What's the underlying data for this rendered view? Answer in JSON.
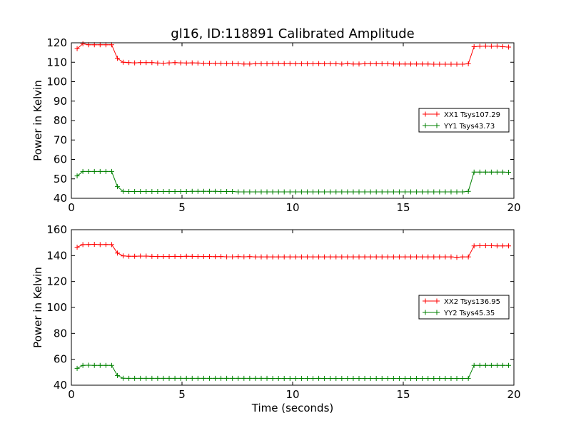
{
  "title": "gl16, ID:118891 Calibrated Amplitude",
  "xlabel": "Time (seconds)",
  "colors": {
    "red": "#ff0000",
    "green": "#008000"
  },
  "chart_data": [
    {
      "type": "line",
      "ylabel": "Power in Kelvin",
      "xlim": [
        0,
        20
      ],
      "ylim": [
        40,
        120
      ],
      "xticks": [
        "0",
        "5",
        "10",
        "15",
        "20"
      ],
      "yticks": [
        "40",
        "50",
        "60",
        "70",
        "80",
        "90",
        "100",
        "110",
        "120"
      ],
      "legend_position": "center-right",
      "series": [
        {
          "name": "XX1 Tsys107.29",
          "color": "#ff0000",
          "x": [
            0.26,
            0.52,
            0.78,
            1.04,
            1.3,
            1.56,
            1.82,
            2.08,
            2.34,
            2.6,
            2.86,
            3.12,
            3.38,
            3.64,
            3.9,
            4.16,
            4.42,
            4.68,
            4.94,
            5.2,
            5.46,
            5.72,
            5.98,
            6.24,
            6.5,
            6.76,
            7.02,
            7.28,
            7.54,
            7.8,
            8.06,
            8.32,
            8.58,
            8.84,
            9.1,
            9.36,
            9.62,
            9.88,
            10.14,
            10.4,
            10.66,
            10.92,
            11.18,
            11.44,
            11.7,
            11.96,
            12.22,
            12.48,
            12.74,
            13.0,
            13.26,
            13.52,
            13.78,
            14.04,
            14.3,
            14.56,
            14.82,
            15.08,
            15.34,
            15.6,
            15.86,
            16.12,
            16.38,
            16.64,
            16.9,
            17.16,
            17.42,
            17.68,
            17.94,
            18.2,
            18.46,
            18.72,
            18.98,
            19.24,
            19.5,
            19.76
          ],
          "y": [
            117,
            119.5,
            119,
            119,
            119,
            119,
            119,
            112,
            110,
            109.8,
            109.7,
            109.8,
            109.8,
            109.8,
            109.6,
            109.5,
            109.7,
            109.8,
            109.7,
            109.6,
            109.7,
            109.6,
            109.4,
            109.5,
            109.4,
            109.4,
            109.3,
            109.4,
            109.2,
            109.1,
            109.1,
            109.2,
            109.2,
            109.2,
            109.3,
            109.3,
            109.3,
            109.3,
            109.2,
            109.2,
            109.2,
            109.2,
            109.3,
            109.2,
            109.2,
            109.2,
            109.1,
            109.3,
            109.1,
            109.1,
            109.2,
            109.2,
            109.2,
            109.2,
            109.2,
            109.1,
            109.1,
            109.1,
            109.1,
            109.1,
            109.1,
            109.1,
            109.0,
            109.0,
            109.0,
            109.0,
            109.0,
            109.0,
            109.2,
            118,
            118.2,
            118.3,
            118.2,
            118.3,
            118.0,
            117.8
          ]
        },
        {
          "name": "YY1 Tsys43.73",
          "color": "#008000",
          "x": [
            0.26,
            0.52,
            0.78,
            1.04,
            1.3,
            1.56,
            1.82,
            2.08,
            2.34,
            2.6,
            2.86,
            3.12,
            3.38,
            3.64,
            3.9,
            4.16,
            4.42,
            4.68,
            4.94,
            5.2,
            5.46,
            5.72,
            5.98,
            6.24,
            6.5,
            6.76,
            7.02,
            7.28,
            7.54,
            7.8,
            8.06,
            8.32,
            8.58,
            8.84,
            9.1,
            9.36,
            9.62,
            9.88,
            10.14,
            10.4,
            10.66,
            10.92,
            11.18,
            11.44,
            11.7,
            11.96,
            12.22,
            12.48,
            12.74,
            13.0,
            13.26,
            13.52,
            13.78,
            14.04,
            14.3,
            14.56,
            14.82,
            15.08,
            15.34,
            15.6,
            15.86,
            16.12,
            16.38,
            16.64,
            16.9,
            17.16,
            17.42,
            17.68,
            17.94,
            18.2,
            18.46,
            18.72,
            18.98,
            19.24,
            19.5,
            19.76
          ],
          "y": [
            51.5,
            53.8,
            53.8,
            53.8,
            53.8,
            53.8,
            53.8,
            46,
            43.6,
            43.5,
            43.5,
            43.5,
            43.5,
            43.5,
            43.5,
            43.5,
            43.5,
            43.5,
            43.5,
            43.5,
            43.6,
            43.6,
            43.6,
            43.6,
            43.6,
            43.5,
            43.5,
            43.5,
            43.3,
            43.3,
            43.3,
            43.3,
            43.3,
            43.3,
            43.3,
            43.3,
            43.3,
            43.3,
            43.3,
            43.3,
            43.3,
            43.3,
            43.3,
            43.3,
            43.3,
            43.3,
            43.3,
            43.3,
            43.3,
            43.3,
            43.3,
            43.3,
            43.3,
            43.3,
            43.3,
            43.3,
            43.3,
            43.3,
            43.3,
            43.3,
            43.3,
            43.3,
            43.3,
            43.3,
            43.3,
            43.3,
            43.3,
            43.3,
            43.6,
            53.5,
            53.5,
            53.5,
            53.5,
            53.5,
            53.5,
            53.4
          ]
        }
      ]
    },
    {
      "type": "line",
      "ylabel": "Power in Kelvin",
      "xlim": [
        0,
        20
      ],
      "ylim": [
        40,
        160
      ],
      "xticks": [
        "0",
        "5",
        "10",
        "15",
        "20"
      ],
      "yticks": [
        "40",
        "60",
        "80",
        "100",
        "120",
        "140",
        "160"
      ],
      "legend_position": "center-right",
      "series": [
        {
          "name": "XX2 Tsys136.95",
          "color": "#ff0000",
          "x": [
            0.26,
            0.52,
            0.78,
            1.04,
            1.3,
            1.56,
            1.82,
            2.08,
            2.34,
            2.6,
            2.86,
            3.12,
            3.38,
            3.64,
            3.9,
            4.16,
            4.42,
            4.68,
            4.94,
            5.2,
            5.46,
            5.72,
            5.98,
            6.24,
            6.5,
            6.76,
            7.02,
            7.28,
            7.54,
            7.8,
            8.06,
            8.32,
            8.58,
            8.84,
            9.1,
            9.36,
            9.62,
            9.88,
            10.14,
            10.4,
            10.66,
            10.92,
            11.18,
            11.44,
            11.7,
            11.96,
            12.22,
            12.48,
            12.74,
            13.0,
            13.26,
            13.52,
            13.78,
            14.04,
            14.3,
            14.56,
            14.82,
            15.08,
            15.34,
            15.6,
            15.86,
            16.12,
            16.38,
            16.64,
            16.9,
            17.16,
            17.42,
            17.68,
            17.94,
            18.2,
            18.46,
            18.72,
            18.98,
            19.24,
            19.5,
            19.76
          ],
          "y": [
            146.5,
            148.5,
            148.6,
            148.7,
            148.5,
            148.6,
            148.5,
            142,
            139.8,
            139.5,
            139.5,
            139.6,
            139.6,
            139.4,
            139.3,
            139.3,
            139.3,
            139.4,
            139.3,
            139.5,
            139.4,
            139.3,
            139.3,
            139.3,
            139.2,
            139.3,
            139.1,
            139.1,
            139.2,
            139.1,
            139.2,
            139.0,
            139.0,
            139.0,
            139.0,
            139.0,
            139.0,
            139.0,
            139.0,
            139.0,
            139.0,
            139.0,
            139.0,
            139.0,
            139.0,
            139.0,
            139.0,
            139.0,
            139.0,
            139.0,
            139.0,
            139.0,
            139.0,
            139.0,
            139.0,
            139.0,
            139.0,
            139.0,
            139.0,
            139.0,
            139.0,
            139.0,
            139.0,
            139.0,
            139.0,
            139.0,
            138.7,
            139.0,
            139.0,
            147.5,
            147.6,
            147.6,
            147.6,
            147.5,
            147.5,
            147.5
          ]
        },
        {
          "name": "YY2 Tsys45.35",
          "color": "#008000",
          "x": [
            0.26,
            0.52,
            0.78,
            1.04,
            1.3,
            1.56,
            1.82,
            2.08,
            2.34,
            2.6,
            2.86,
            3.12,
            3.38,
            3.64,
            3.9,
            4.16,
            4.42,
            4.68,
            4.94,
            5.2,
            5.46,
            5.72,
            5.98,
            6.24,
            6.5,
            6.76,
            7.02,
            7.28,
            7.54,
            7.8,
            8.06,
            8.32,
            8.58,
            8.84,
            9.1,
            9.36,
            9.62,
            9.88,
            10.14,
            10.4,
            10.66,
            10.92,
            11.18,
            11.44,
            11.7,
            11.96,
            12.22,
            12.48,
            12.74,
            13.0,
            13.26,
            13.52,
            13.78,
            14.04,
            14.3,
            14.56,
            14.82,
            15.08,
            15.34,
            15.6,
            15.86,
            16.12,
            16.38,
            16.64,
            16.9,
            17.16,
            17.42,
            17.68,
            17.94,
            18.2,
            18.46,
            18.72,
            18.98,
            19.24,
            19.5,
            19.76
          ],
          "y": [
            53,
            55.3,
            55.4,
            55.3,
            55.3,
            55.3,
            55.3,
            47.5,
            45.4,
            45.3,
            45.3,
            45.3,
            45.3,
            45.3,
            45.3,
            45.3,
            45.3,
            45.3,
            45.3,
            45.3,
            45.3,
            45.3,
            45.3,
            45.3,
            45.3,
            45.3,
            45.3,
            45.3,
            45.3,
            45.3,
            45.3,
            45.3,
            45.3,
            45.3,
            45.2,
            45.2,
            45.2,
            45.2,
            45.2,
            45.2,
            45.2,
            45.2,
            45.3,
            45.2,
            45.2,
            45.2,
            45.2,
            45.2,
            45.2,
            45.2,
            45.2,
            45.2,
            45.2,
            45.2,
            45.2,
            45.2,
            45.2,
            45.2,
            45.2,
            45.2,
            45.2,
            45.2,
            45.2,
            45.2,
            45.2,
            45.2,
            45.2,
            45.2,
            45.3,
            55.3,
            55.3,
            55.3,
            55.3,
            55.3,
            55.3,
            55.3
          ]
        }
      ]
    }
  ]
}
